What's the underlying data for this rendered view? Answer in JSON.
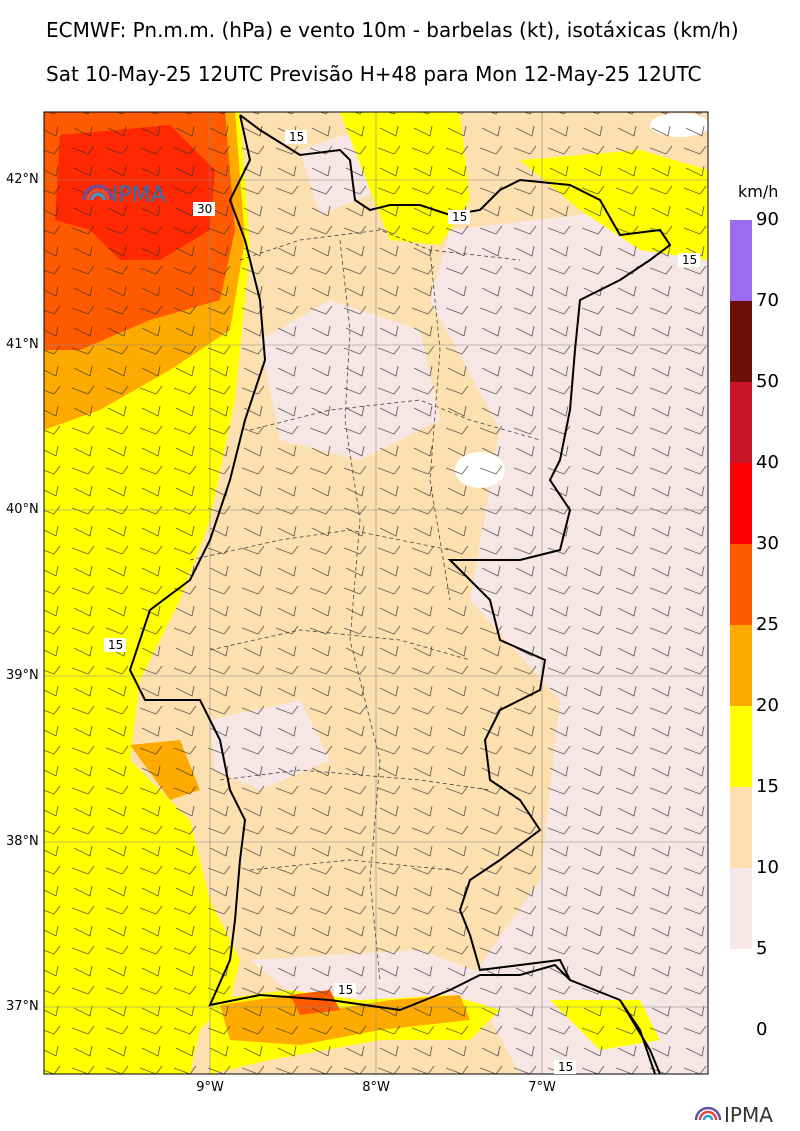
{
  "header": {
    "title": "ECMWF: Pn.m.m. (hPa) e vento 10m - barbelas (kt), isotáxicas (km/h)",
    "subtitle": "Sat 10-May-25 12UTC Previsão H+48 para Mon 12-May-25 12UTC"
  },
  "map": {
    "lat_labels": [
      "42°N",
      "41°N",
      "40°N",
      "39°N",
      "38°N",
      "37°N"
    ],
    "lon_labels": [
      "9°W",
      "8°W",
      "7°W"
    ],
    "contour_labels": [
      "15",
      "30",
      "15",
      "15",
      "15",
      "15",
      "15"
    ],
    "watermark": "IPMA"
  },
  "colorbar": {
    "unit": "km/h",
    "ticks": [
      "90",
      "70",
      "50",
      "40",
      "30",
      "25",
      "20",
      "15",
      "10",
      "5",
      "0"
    ],
    "bins": [
      {
        "range": "70-90",
        "color": "#9b6bf0"
      },
      {
        "range": "50-70",
        "color": "#6b0f08"
      },
      {
        "range": "40-50",
        "color": "#c8152a"
      },
      {
        "range": "30-40",
        "color": "#ff0000"
      },
      {
        "range": "25-30",
        "color": "#ff5a00"
      },
      {
        "range": "20-25",
        "color": "#ffaa00"
      },
      {
        "range": "15-20",
        "color": "#ffff00"
      },
      {
        "range": "10-15",
        "color": "#fde0b0"
      },
      {
        "range": "5-10",
        "color": "#f6e7e6"
      },
      {
        "range": "0-5",
        "color": "#ffffff"
      }
    ]
  },
  "footer": {
    "brand": "IPMA"
  }
}
